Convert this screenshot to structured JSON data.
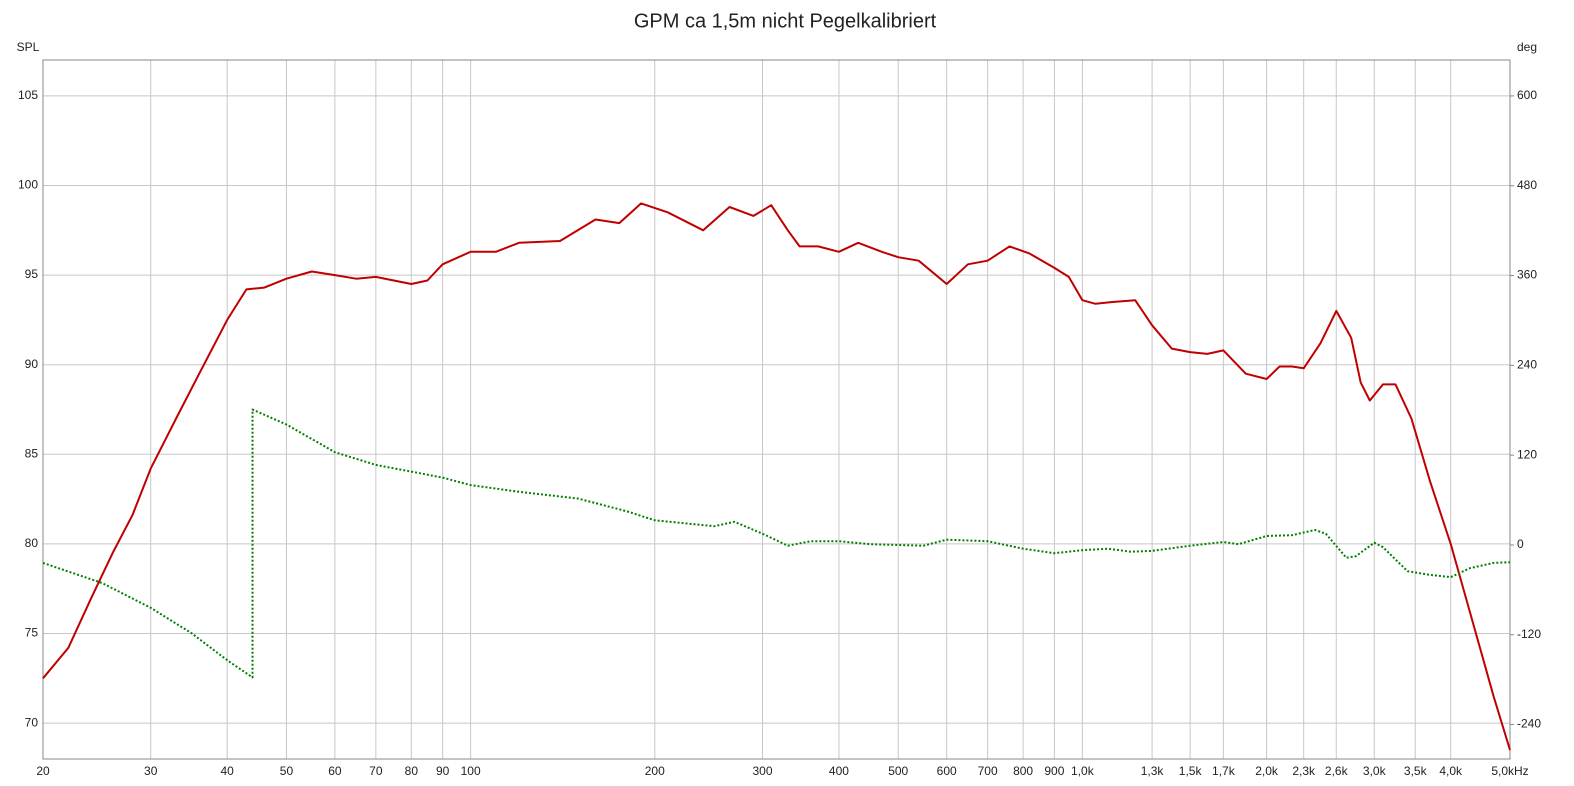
{
  "chart_data": {
    "type": "line",
    "title": "GPM ca 1,5m nicht Pegelkalibriert",
    "ylabel": "SPL",
    "y2label": "deg",
    "xscale": "log",
    "grid": true,
    "xlim": [
      20,
      5000
    ],
    "xticks": [
      20,
      30,
      40,
      50,
      60,
      70,
      80,
      90,
      100,
      200,
      300,
      400,
      500,
      600,
      700,
      800,
      900,
      {
        "value": 1000,
        "label": "1,0k"
      },
      {
        "value": 1300,
        "label": "1,3k"
      },
      {
        "value": 1500,
        "label": "1,5k"
      },
      {
        "value": 1700,
        "label": "1,7k"
      },
      {
        "value": 2000,
        "label": "2,0k"
      },
      {
        "value": 2300,
        "label": "2,3k"
      },
      {
        "value": 2600,
        "label": "2,6k"
      },
      {
        "value": 3000,
        "label": "3,0k"
      },
      {
        "value": 3500,
        "label": "3,5k"
      },
      {
        "value": 4000,
        "label": "4,0k"
      },
      {
        "value": 5000,
        "label": "5,0kHz"
      }
    ],
    "ylim": [
      68,
      107
    ],
    "yticks": [
      70,
      75,
      80,
      85,
      90,
      95,
      100,
      105
    ],
    "y2lim": [
      -286,
      648
    ],
    "y2ticks": [
      -240,
      -120,
      0,
      120,
      240,
      360,
      480,
      600
    ],
    "series": [
      {
        "color": "#c00000",
        "line_style": "solid",
        "axis": "y",
        "x": [
          20,
          22,
          24,
          26,
          28,
          30,
          33,
          36,
          40,
          43,
          46,
          50,
          55,
          60,
          65,
          70,
          80,
          85,
          90,
          100,
          110,
          120,
          140,
          160,
          175,
          190,
          210,
          240,
          265,
          290,
          310,
          330,
          345,
          370,
          400,
          430,
          470,
          500,
          540,
          600,
          650,
          700,
          760,
          820,
          900,
          950,
          1000,
          1050,
          1120,
          1220,
          1300,
          1400,
          1500,
          1600,
          1700,
          1850,
          2000,
          2100,
          2200,
          2300,
          2450,
          2600,
          2750,
          2850,
          2950,
          3100,
          3250,
          3450,
          3700,
          4000,
          4300,
          4700,
          5000
        ],
        "values": [
          72.5,
          74.2,
          77.0,
          79.5,
          81.6,
          84.2,
          87.0,
          89.5,
          92.5,
          94.2,
          94.3,
          94.8,
          95.2,
          95.0,
          94.8,
          94.9,
          94.5,
          94.7,
          95.6,
          96.3,
          96.3,
          96.8,
          96.9,
          98.1,
          97.9,
          99.0,
          98.5,
          97.5,
          98.8,
          98.3,
          98.9,
          97.5,
          96.6,
          96.6,
          96.3,
          96.8,
          96.3,
          96.0,
          95.8,
          94.5,
          95.6,
          95.8,
          96.6,
          96.2,
          95.4,
          94.9,
          93.6,
          93.4,
          93.5,
          93.6,
          92.2,
          90.9,
          90.7,
          90.6,
          90.8,
          89.5,
          89.2,
          89.9,
          89.9,
          89.8,
          91.2,
          93.0,
          91.5,
          89.0,
          88.0,
          88.9,
          88.9,
          87.0,
          83.5,
          80.0,
          76.2,
          71.5,
          68.5
        ]
      },
      {
        "color": "#008000",
        "line_style": "dotted",
        "axis": "y2",
        "x": [
          20,
          25,
          30,
          35,
          40,
          44,
          44,
          50,
          60,
          70,
          80,
          90,
          100,
          120,
          150,
          180,
          200,
          250,
          270,
          300,
          330,
          360,
          400,
          450,
          500,
          550,
          600,
          700,
          800,
          900,
          1000,
          1100,
          1200,
          1300,
          1500,
          1700,
          1800,
          2000,
          2200,
          2400,
          2500,
          2700,
          2800,
          3000,
          3100,
          3400,
          3700,
          4000,
          4300,
          4700,
          5000
        ],
        "values": [
          -24,
          -51,
          -84,
          -118,
          -154,
          -177,
          181,
          161,
          124,
          107,
          98,
          90,
          80,
          71,
          62,
          45,
          33,
          25,
          31,
          15,
          -1,
          5,
          5,
          1,
          0,
          -1,
          7,
          5,
          -5,
          -11,
          -7,
          -5,
          -9,
          -8,
          -1,
          4,
          1,
          12,
          13,
          20,
          15,
          -17,
          -15,
          3,
          -3,
          -35,
          -40,
          -43,
          -31,
          -24,
          -23
        ]
      }
    ]
  }
}
